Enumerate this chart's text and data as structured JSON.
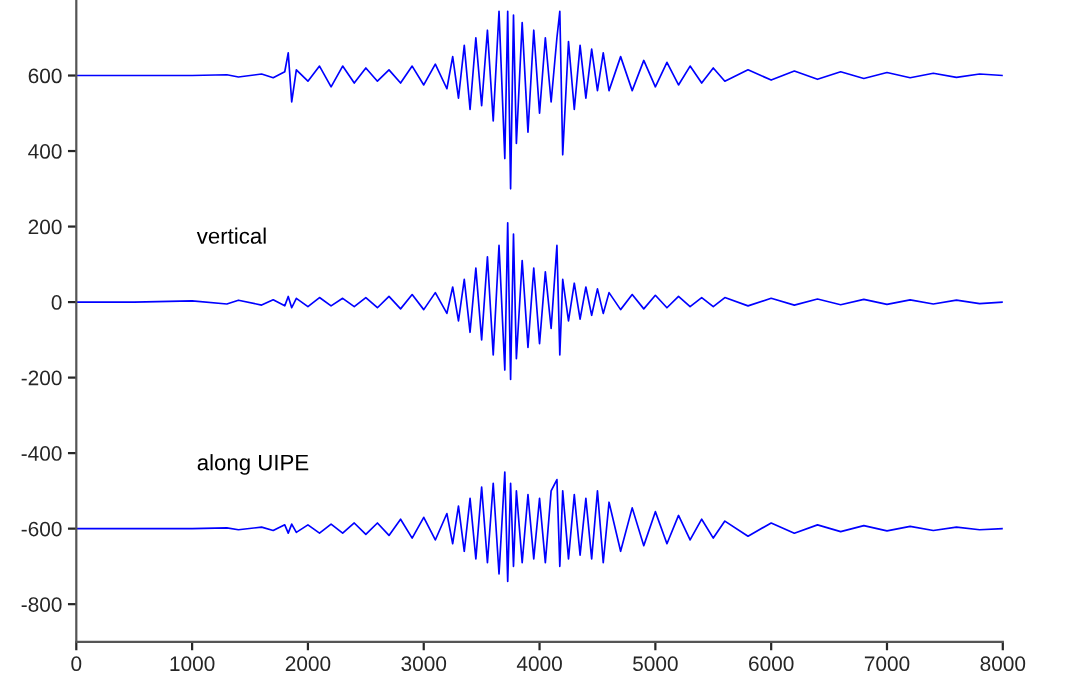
{
  "chart_data": {
    "type": "line",
    "x": [
      0,
      500,
      1000,
      1300,
      1400,
      1600,
      1700,
      1800,
      1830,
      1860,
      1900,
      2000,
      2100,
      2200,
      2300,
      2400,
      2500,
      2600,
      2700,
      2800,
      2900,
      3000,
      3100,
      3200,
      3250,
      3300,
      3350,
      3400,
      3450,
      3500,
      3550,
      3600,
      3650,
      3700,
      3725,
      3750,
      3775,
      3800,
      3850,
      3900,
      3950,
      4000,
      4050,
      4100,
      4150,
      4175,
      4200,
      4250,
      4300,
      4350,
      4400,
      4450,
      4500,
      4550,
      4600,
      4700,
      4800,
      4900,
      5000,
      5100,
      5200,
      5300,
      5400,
      5500,
      5600,
      5800,
      6000,
      6200,
      6400,
      6600,
      6800,
      7000,
      7200,
      7400,
      7600,
      7800,
      8000
    ],
    "series": [
      {
        "color": "#0000ff",
        "values": [
          600,
          600,
          600,
          602,
          596,
          604,
          594,
          610,
          660,
          530,
          615,
          585,
          625,
          570,
          625,
          580,
          620,
          585,
          615,
          580,
          625,
          575,
          630,
          565,
          650,
          540,
          680,
          510,
          700,
          520,
          720,
          480,
          770,
          380,
          770,
          300,
          760,
          420,
          740,
          450,
          720,
          500,
          700,
          530,
          700,
          770,
          390,
          690,
          510,
          680,
          540,
          670,
          560,
          660,
          560,
          650,
          560,
          640,
          570,
          635,
          575,
          625,
          580,
          620,
          585,
          615,
          588,
          612,
          590,
          610,
          592,
          608,
          594,
          606,
          595,
          604,
          600
        ]
      },
      {
        "name": "vertical",
        "color": "#0000ff",
        "values": [
          0,
          0,
          3,
          -5,
          5,
          -8,
          6,
          -10,
          15,
          -15,
          10,
          -12,
          12,
          -10,
          10,
          -12,
          12,
          -15,
          15,
          -18,
          20,
          -20,
          25,
          -30,
          40,
          -50,
          60,
          -80,
          90,
          -100,
          120,
          -140,
          150,
          -180,
          210,
          -205,
          180,
          -150,
          110,
          -120,
          90,
          -110,
          80,
          -70,
          150,
          -140,
          60,
          -50,
          50,
          -45,
          40,
          -35,
          35,
          -30,
          25,
          -20,
          20,
          -18,
          18,
          -15,
          15,
          -12,
          12,
          -12,
          12,
          -10,
          10,
          -8,
          8,
          -7,
          7,
          -6,
          6,
          -5,
          5,
          -4,
          0
        ]
      },
      {
        "name": "along UIPE",
        "color": "#0000ff",
        "values": [
          -600,
          -600,
          -600,
          -598,
          -603,
          -596,
          -605,
          -590,
          -612,
          -588,
          -610,
          -590,
          -612,
          -588,
          -612,
          -585,
          -615,
          -585,
          -618,
          -575,
          -625,
          -570,
          -630,
          -560,
          -640,
          -540,
          -660,
          -520,
          -680,
          -490,
          -690,
          -480,
          -720,
          -450,
          -740,
          -480,
          -700,
          -500,
          -690,
          -510,
          -680,
          -520,
          -690,
          -500,
          -470,
          -700,
          -500,
          -680,
          -510,
          -670,
          -520,
          -680,
          -500,
          -690,
          -530,
          -660,
          -545,
          -645,
          -555,
          -640,
          -565,
          -630,
          -575,
          -625,
          -580,
          -620,
          -585,
          -612,
          -590,
          -608,
          -592,
          -606,
          -594,
          -605,
          -596,
          -603,
          -600
        ]
      }
    ],
    "xlim": [
      0,
      8000
    ],
    "xticks": [
      0,
      1000,
      2000,
      3000,
      4000,
      5000,
      6000,
      7000,
      8000
    ],
    "ylim": [
      -900,
      800
    ],
    "yticks": [
      -800,
      -600,
      -400,
      -200,
      0,
      200,
      400,
      600
    ],
    "grid": false,
    "legend": false
  }
}
